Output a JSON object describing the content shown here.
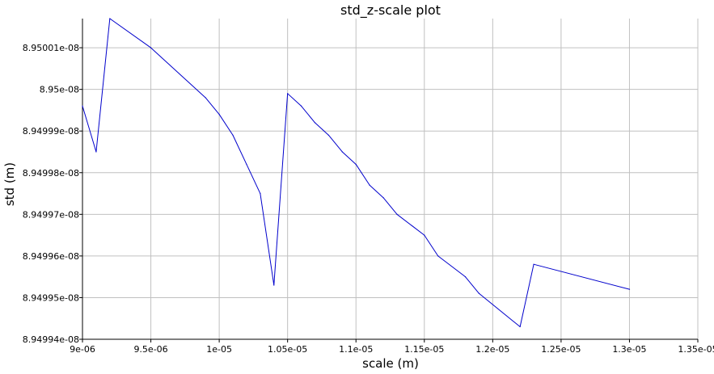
{
  "chart_data": {
    "type": "line",
    "title": "std_z-scale plot",
    "xlabel": "scale (m)",
    "ylabel": "std (m)",
    "xlim": [
      9e-06,
      1.35e-05
    ],
    "ylim": [
      8.94994e-08,
      8.950017e-08
    ],
    "grid": true,
    "x_ticks": [
      {
        "value": 9e-06,
        "label": "9e-06"
      },
      {
        "value": 9.5e-06,
        "label": "9.5e-06"
      },
      {
        "value": 1e-05,
        "label": "1e-05"
      },
      {
        "value": 1.05e-05,
        "label": "1.05e-05"
      },
      {
        "value": 1.1e-05,
        "label": "1.1e-05"
      },
      {
        "value": 1.15e-05,
        "label": "1.15e-05"
      },
      {
        "value": 1.2e-05,
        "label": "1.2e-05"
      },
      {
        "value": 1.25e-05,
        "label": "1.25e-05"
      },
      {
        "value": 1.3e-05,
        "label": "1.3e-05"
      },
      {
        "value": 1.35e-05,
        "label": "1.35e-05"
      }
    ],
    "y_ticks": [
      {
        "value": 8.94994e-08,
        "label": "8.94994e-08"
      },
      {
        "value": 8.94995e-08,
        "label": "8.94995e-08"
      },
      {
        "value": 8.94996e-08,
        "label": "8.94996e-08"
      },
      {
        "value": 8.94997e-08,
        "label": "8.94997e-08"
      },
      {
        "value": 8.94998e-08,
        "label": "8.94998e-08"
      },
      {
        "value": 8.94999e-08,
        "label": "8.94999e-08"
      },
      {
        "value": 8.95e-08,
        "label": "8.95e-08"
      },
      {
        "value": 8.95001e-08,
        "label": "8.95001e-08"
      }
    ],
    "series": [
      {
        "color": "#0000cc",
        "points": [
          {
            "x": 9e-06,
            "y": 8.949996e-08
          },
          {
            "x": 9.1e-06,
            "y": 8.949985e-08
          },
          {
            "x": 9.2e-06,
            "y": 8.950017e-08
          },
          {
            "x": 9.5e-06,
            "y": 8.95001e-08
          },
          {
            "x": 9.9e-06,
            "y": 8.949998e-08
          },
          {
            "x": 1e-05,
            "y": 8.949994e-08
          },
          {
            "x": 1.01e-05,
            "y": 8.949989e-08
          },
          {
            "x": 1.02e-05,
            "y": 8.949982e-08
          },
          {
            "x": 1.03e-05,
            "y": 8.949975e-08
          },
          {
            "x": 1.04e-05,
            "y": 8.949953e-08
          },
          {
            "x": 1.05e-05,
            "y": 8.949999e-08
          },
          {
            "x": 1.06e-05,
            "y": 8.949996e-08
          },
          {
            "x": 1.07e-05,
            "y": 8.949992e-08
          },
          {
            "x": 1.08e-05,
            "y": 8.949989e-08
          },
          {
            "x": 1.09e-05,
            "y": 8.949985e-08
          },
          {
            "x": 1.1e-05,
            "y": 8.949982e-08
          },
          {
            "x": 1.11e-05,
            "y": 8.949977e-08
          },
          {
            "x": 1.12e-05,
            "y": 8.949974e-08
          },
          {
            "x": 1.13e-05,
            "y": 8.94997e-08
          },
          {
            "x": 1.15e-05,
            "y": 8.949965e-08
          },
          {
            "x": 1.16e-05,
            "y": 8.94996e-08
          },
          {
            "x": 1.18e-05,
            "y": 8.949955e-08
          },
          {
            "x": 1.19e-05,
            "y": 8.949951e-08
          },
          {
            "x": 1.22e-05,
            "y": 8.949943e-08
          },
          {
            "x": 1.23e-05,
            "y": 8.949958e-08
          },
          {
            "x": 1.3e-05,
            "y": 8.949952e-08
          }
        ]
      }
    ]
  }
}
